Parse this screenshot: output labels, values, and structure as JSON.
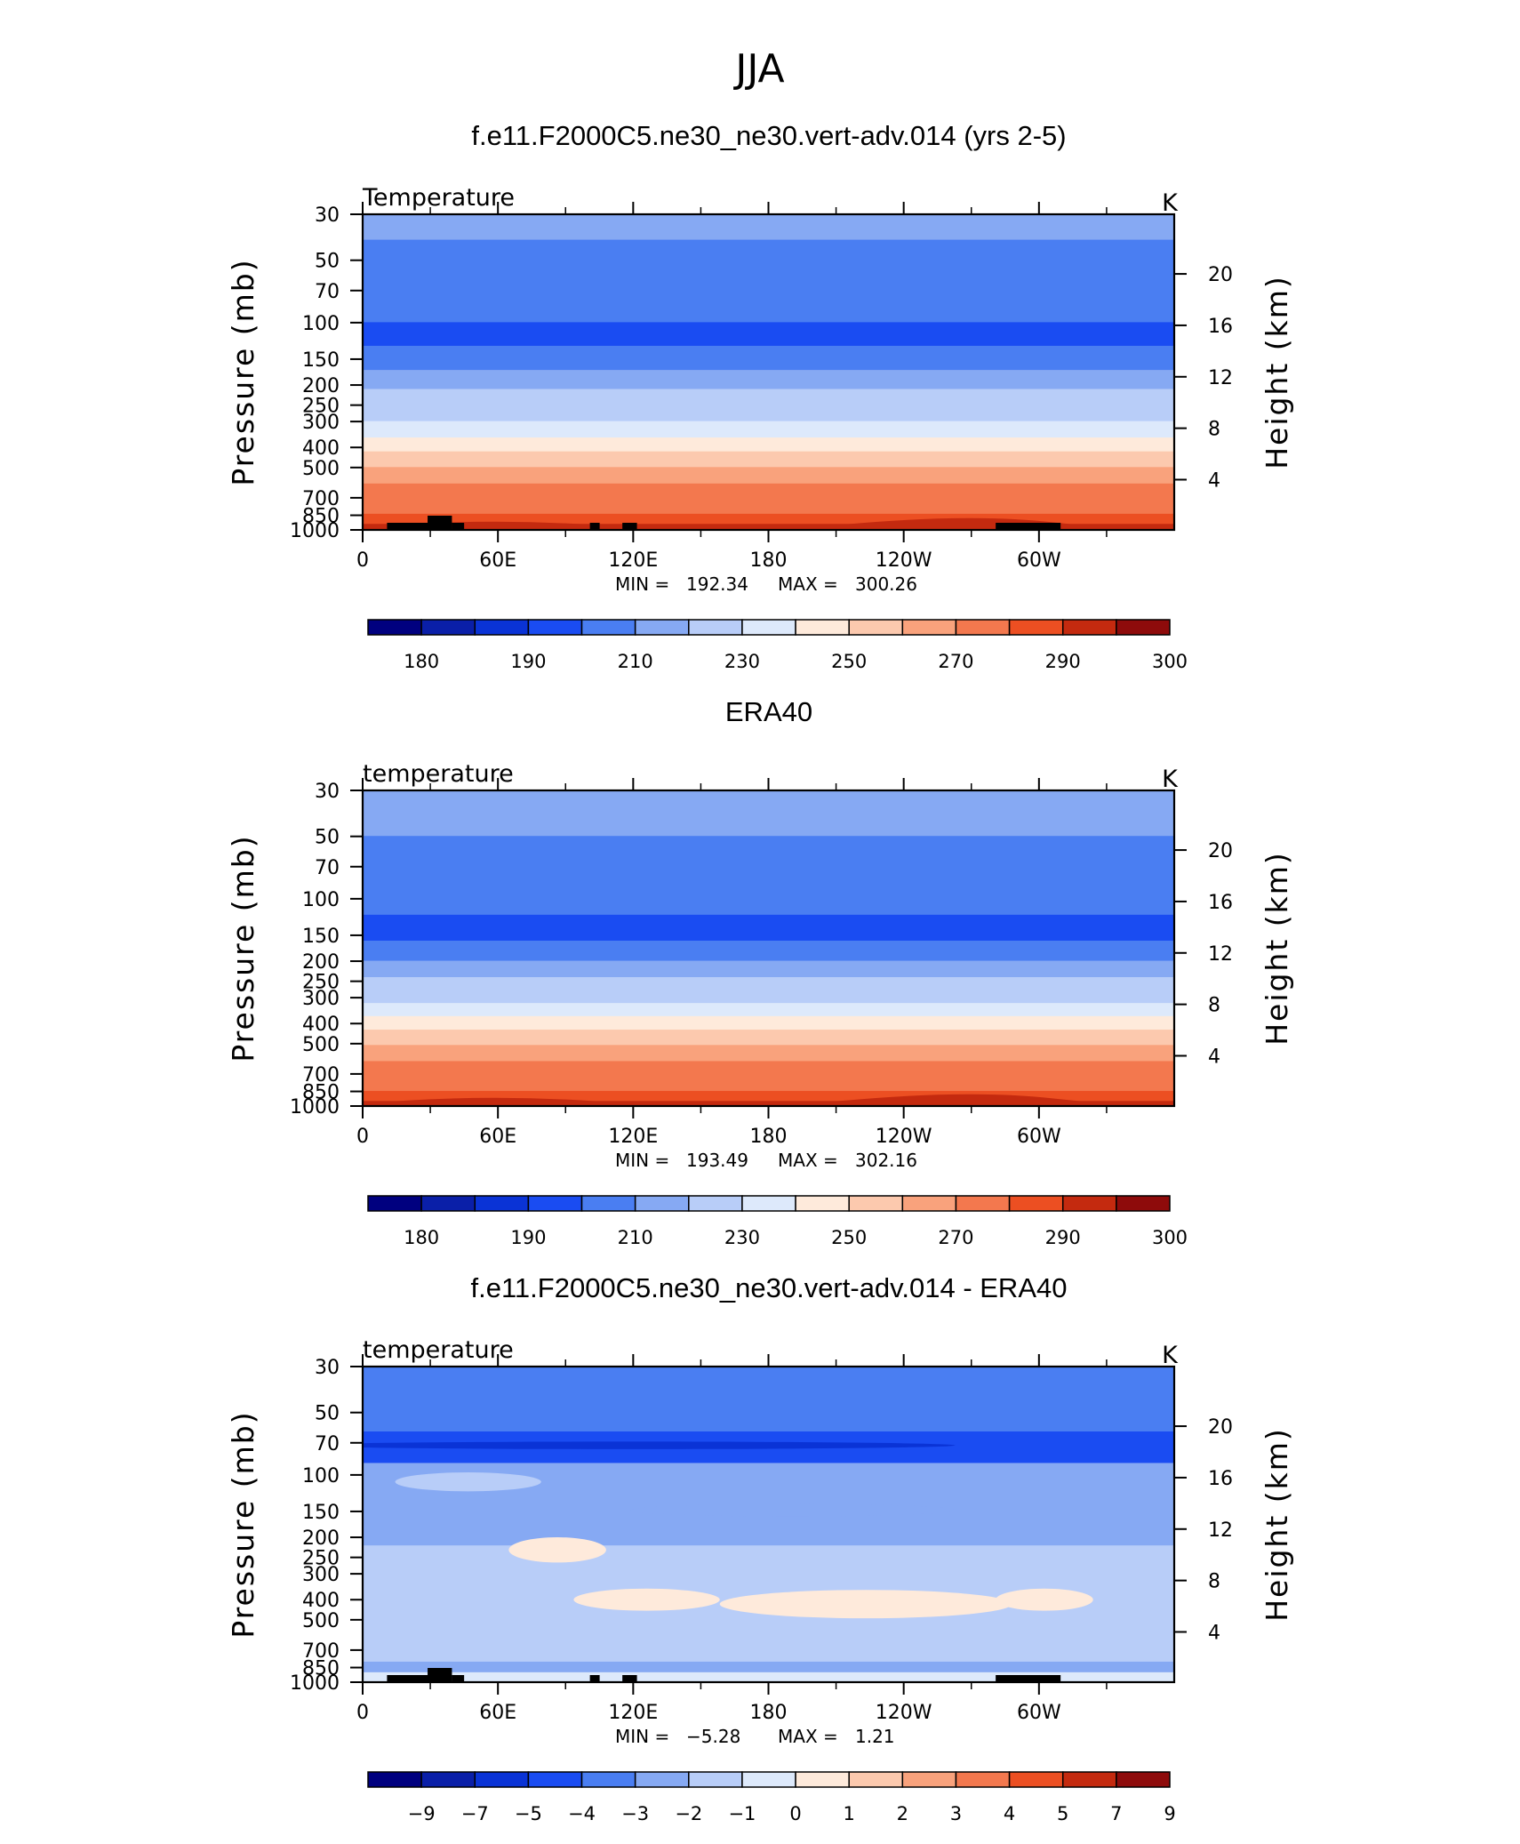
{
  "figure": {
    "title": "JJA"
  },
  "colors": {
    "palette": [
      "#00007f",
      "#0a1fa8",
      "#0a33d6",
      "#1a4cf2",
      "#4a7ef2",
      "#86a9f3",
      "#b8cdf8",
      "#dde9fb",
      "#feeadb",
      "#fcc9ae",
      "#f9a27c",
      "#f3784e",
      "#ec4f22",
      "#c42a0f",
      "#8e0b0b"
    ]
  },
  "chart_data": [
    {
      "type": "heatmap",
      "title": "f.e11.F2000C5.ne30_ne30.vert-adv.014 (yrs 2-5)",
      "variable": "Temperature",
      "units": "K",
      "xlabel": "",
      "ylabel": "Pressure (mb)",
      "ylabel_right": "Height (km)",
      "x_ticks": [
        "0",
        "60E",
        "120E",
        "180",
        "120W",
        "60W"
      ],
      "y_ticks": [
        "30",
        "50",
        "70",
        "100",
        "150",
        "200",
        "250",
        "300",
        "400",
        "500",
        "700",
        "850",
        "1000"
      ],
      "y_right_ticks": [
        "20",
        "16",
        "12",
        "8",
        "4"
      ],
      "y_scale": "log",
      "min_label": "MIN =",
      "min_value": "192.34",
      "max_label": "MAX =",
      "max_value": "300.26",
      "colorbar_labels": [
        "180",
        "190",
        "210",
        "230",
        "250",
        "270",
        "290",
        "300"
      ],
      "layers": [
        {
          "p": 30,
          "value": 215
        },
        {
          "p": 40,
          "value": 208
        },
        {
          "p": 60,
          "value": 200
        },
        {
          "p": 100,
          "value": 195
        },
        {
          "p": 130,
          "value": 205
        },
        {
          "p": 170,
          "value": 213
        },
        {
          "p": 210,
          "value": 220
        },
        {
          "p": 250,
          "value": 228
        },
        {
          "p": 300,
          "value": 238
        },
        {
          "p": 360,
          "value": 248
        },
        {
          "p": 420,
          "value": 255
        },
        {
          "p": 500,
          "value": 262
        },
        {
          "p": 600,
          "value": 270
        },
        {
          "p": 720,
          "value": 277
        },
        {
          "p": 840,
          "value": 285
        },
        {
          "p": 940,
          "value": 292
        },
        {
          "p": 1000,
          "value": 297
        }
      ],
      "has_topography": true
    },
    {
      "type": "heatmap",
      "title": "ERA40",
      "variable": "temperature",
      "units": "K",
      "xlabel": "",
      "ylabel": "Pressure (mb)",
      "ylabel_right": "Height (km)",
      "x_ticks": [
        "0",
        "60E",
        "120E",
        "180",
        "120W",
        "60W"
      ],
      "y_ticks": [
        "30",
        "50",
        "70",
        "100",
        "150",
        "200",
        "250",
        "300",
        "400",
        "500",
        "700",
        "850",
        "1000"
      ],
      "y_right_ticks": [
        "20",
        "16",
        "12",
        "8",
        "4"
      ],
      "y_scale": "log",
      "min_label": "MIN =",
      "min_value": "193.49",
      "max_label": "MAX =",
      "max_value": "302.16",
      "colorbar_labels": [
        "180",
        "190",
        "210",
        "230",
        "250",
        "270",
        "290",
        "300"
      ],
      "layers": [
        {
          "p": 30,
          "value": 213
        },
        {
          "p": 50,
          "value": 205
        },
        {
          "p": 80,
          "value": 200
        },
        {
          "p": 120,
          "value": 195
        },
        {
          "p": 160,
          "value": 205
        },
        {
          "p": 200,
          "value": 213
        },
        {
          "p": 240,
          "value": 220
        },
        {
          "p": 280,
          "value": 228
        },
        {
          "p": 320,
          "value": 238
        },
        {
          "p": 370,
          "value": 248
        },
        {
          "p": 430,
          "value": 255
        },
        {
          "p": 510,
          "value": 262
        },
        {
          "p": 610,
          "value": 270
        },
        {
          "p": 730,
          "value": 277
        },
        {
          "p": 850,
          "value": 285
        },
        {
          "p": 950,
          "value": 292
        },
        {
          "p": 1000,
          "value": 297
        }
      ],
      "has_topography": false
    },
    {
      "type": "heatmap",
      "title": "f.e11.F2000C5.ne30_ne30.vert-adv.014 - ERA40",
      "variable": "temperature",
      "units": "K",
      "xlabel": "",
      "ylabel": "Pressure (mb)",
      "ylabel_right": "Height (km)",
      "x_ticks": [
        "0",
        "60E",
        "120E",
        "180",
        "120W",
        "60W"
      ],
      "y_ticks": [
        "30",
        "50",
        "70",
        "100",
        "150",
        "200",
        "250",
        "300",
        "400",
        "500",
        "700",
        "850",
        "1000"
      ],
      "y_right_ticks": [
        "20",
        "16",
        "12",
        "8",
        "4"
      ],
      "y_scale": "log",
      "min_label": "MIN =",
      "min_value": "−5.28",
      "max_label": "MAX =",
      "max_value": "1.21",
      "colorbar_labels": [
        "−9",
        "−7",
        "−5",
        "−4",
        "−3",
        "−2",
        "−1",
        "0",
        "1",
        "2",
        "3",
        "4",
        "5",
        "7",
        "9"
      ],
      "layers": [
        {
          "p": 30,
          "value": -3.5
        },
        {
          "p": 62,
          "value": -4.5
        },
        {
          "p": 88,
          "value": -2.5
        },
        {
          "p": 220,
          "value": -1.5
        },
        {
          "p": 800,
          "value": -2.5
        },
        {
          "p": 900,
          "value": -0.5
        },
        {
          "p": 1000,
          "value": -0.5
        }
      ],
      "has_topography": true
    }
  ]
}
